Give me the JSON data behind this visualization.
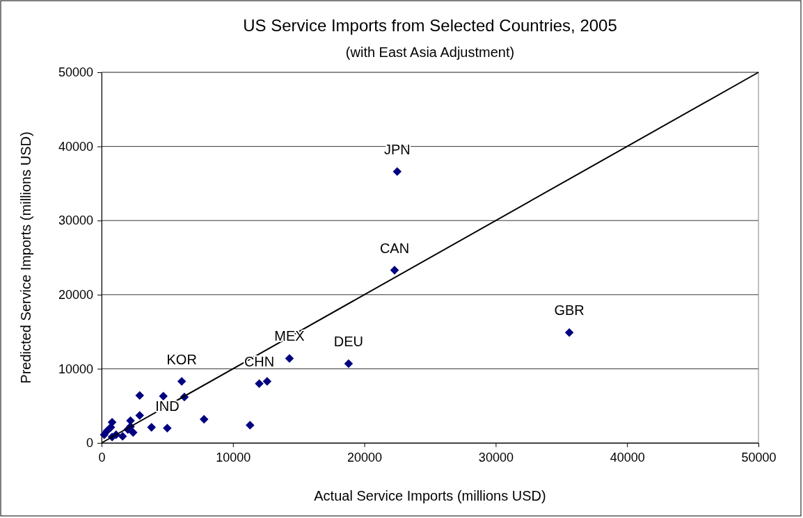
{
  "chart_data": {
    "type": "scatter",
    "title": "US Service Imports from Selected Countries, 2005",
    "subtitle": "(with East Asia Adjustment)",
    "xlabel": "Actual Service Imports (millions USD)",
    "ylabel": "Predicted Service Imports (millions USD)",
    "xlim": [
      0,
      50000
    ],
    "ylim": [
      0,
      50000
    ],
    "xticks": [
      0,
      10000,
      20000,
      30000,
      40000,
      50000
    ],
    "yticks": [
      0,
      10000,
      20000,
      30000,
      40000,
      50000
    ],
    "grid": "y",
    "marker": "diamond",
    "series": [
      {
        "color": "#000080",
        "x": [
          22500,
          22300,
          35600,
          18800,
          14300,
          12000,
          12600,
          11300,
          6100,
          6300,
          4700,
          2900,
          2900,
          7800,
          3800,
          5000,
          2200,
          2200,
          2400,
          1600,
          800,
          700,
          400,
          200,
          800,
          1100,
          2000
        ],
        "values": [
          36600,
          23300,
          14900,
          10700,
          11400,
          8000,
          8300,
          2400,
          8300,
          6200,
          6300,
          6400,
          3700,
          3200,
          2100,
          2000,
          3000,
          2200,
          1400,
          900,
          2800,
          2100,
          1600,
          1100,
          800,
          1100,
          1800
        ]
      },
      {
        "type": "line",
        "color": "#000000",
        "marker": "none",
        "x": [
          0,
          50000
        ],
        "values": [
          0,
          50000
        ]
      }
    ],
    "annotations": [
      {
        "text": "JPN",
        "x": 22500,
        "y": 36600
      },
      {
        "text": "CAN",
        "x": 22300,
        "y": 23300
      },
      {
        "text": "GBR",
        "x": 35600,
        "y": 14900
      },
      {
        "text": "DEU",
        "x": 18800,
        "y": 10700
      },
      {
        "text": "MEX",
        "x": 14300,
        "y": 11400
      },
      {
        "text": "CHN",
        "x": 12000,
        "y": 8000
      },
      {
        "text": "KOR",
        "x": 6100,
        "y": 8300
      },
      {
        "text": "IND",
        "x": 5000,
        "y": 2000
      }
    ]
  }
}
